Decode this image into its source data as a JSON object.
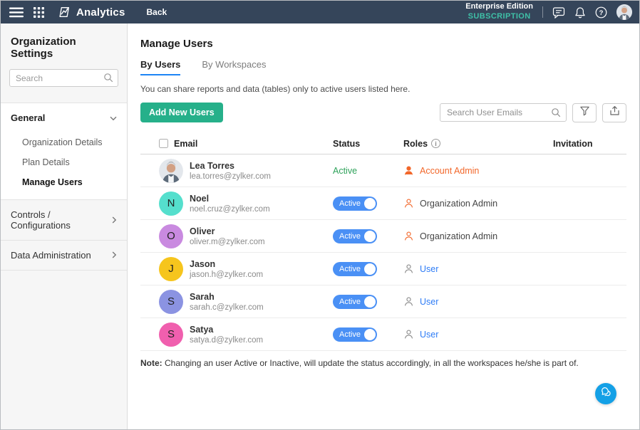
{
  "topbar": {
    "app_name": "Analytics",
    "back_label": "Back",
    "edition_line1": "Enterprise Edition",
    "edition_line2": "SUBSCRIPTION"
  },
  "sidebar": {
    "title": "Organization Settings",
    "search_placeholder": "Search",
    "groups": [
      {
        "label": "General",
        "expanded": true,
        "items": [
          {
            "label": "Organization Details",
            "active": false
          },
          {
            "label": "Plan Details",
            "active": false
          },
          {
            "label": "Manage Users",
            "active": true
          }
        ]
      },
      {
        "label": "Controls / Configurations",
        "expanded": false
      },
      {
        "label": "Data Administration",
        "expanded": false
      }
    ]
  },
  "main": {
    "title": "Manage Users",
    "tabs": [
      {
        "label": "By Users",
        "active": true
      },
      {
        "label": "By Workspaces",
        "active": false
      }
    ],
    "description": "You can share reports and data (tables) only to active users listed here.",
    "toolbar": {
      "add_users_label": "Add New Users",
      "search_placeholder": "Search User Emails"
    },
    "table": {
      "headers": {
        "email": "Email",
        "status": "Status",
        "roles": "Roles",
        "invitation": "Invitation"
      },
      "rows": [
        {
          "name": "Lea Torres",
          "email": "lea.torres@zylker.com",
          "avatar_type": "photo",
          "avatar_letter": "",
          "avatar_color": "",
          "status": "Active",
          "status_type": "text",
          "role": "Account Admin",
          "role_type": "account-admin",
          "invitation": ""
        },
        {
          "name": "Noel",
          "email": "noel.cruz@zylker.com",
          "avatar_type": "letter",
          "avatar_letter": "N",
          "avatar_color": "#55dfcd",
          "status": "Active",
          "status_type": "toggle",
          "role": "Organization Admin",
          "role_type": "org-admin",
          "invitation": ""
        },
        {
          "name": "Oliver",
          "email": "oliver.m@zylker.com",
          "avatar_type": "letter",
          "avatar_letter": "O",
          "avatar_color": "#c98ae0",
          "status": "Active",
          "status_type": "toggle",
          "role": "Organization Admin",
          "role_type": "org-admin",
          "invitation": ""
        },
        {
          "name": "Jason",
          "email": "jason.h@zylker.com",
          "avatar_type": "letter",
          "avatar_letter": "J",
          "avatar_color": "#f6c51d",
          "status": "Active",
          "status_type": "toggle",
          "role": "User",
          "role_type": "user",
          "invitation": ""
        },
        {
          "name": "Sarah",
          "email": "sarah.c@zylker.com",
          "avatar_type": "letter",
          "avatar_letter": "S",
          "avatar_color": "#8b93e2",
          "status": "Active",
          "status_type": "toggle",
          "role": "User",
          "role_type": "user",
          "invitation": ""
        },
        {
          "name": "Satya",
          "email": "satya.d@zylker.com",
          "avatar_type": "letter",
          "avatar_letter": "S",
          "avatar_color": "#f05fae",
          "status": "Active",
          "status_type": "toggle",
          "role": "User",
          "role_type": "user",
          "invitation": ""
        }
      ]
    },
    "note_label": "Note:",
    "note_text": " Changing an user Active or Inactive, will update the status accordingly, in all the workspaces he/she is part of."
  },
  "icons": {
    "info": "i",
    "help": "?"
  },
  "colors": {
    "topbar_bg": "#35455a",
    "subscription_teal": "#3fc0a7",
    "primary_button_green": "#26b08a",
    "active_text_green": "#2ea25a",
    "toggle_blue": "#4a90f5",
    "link_blue": "#2e7cf6",
    "admin_orange": "#f2672a",
    "tab_underline_blue": "#1d84f5",
    "chat_fab_blue": "#14a0e6"
  }
}
